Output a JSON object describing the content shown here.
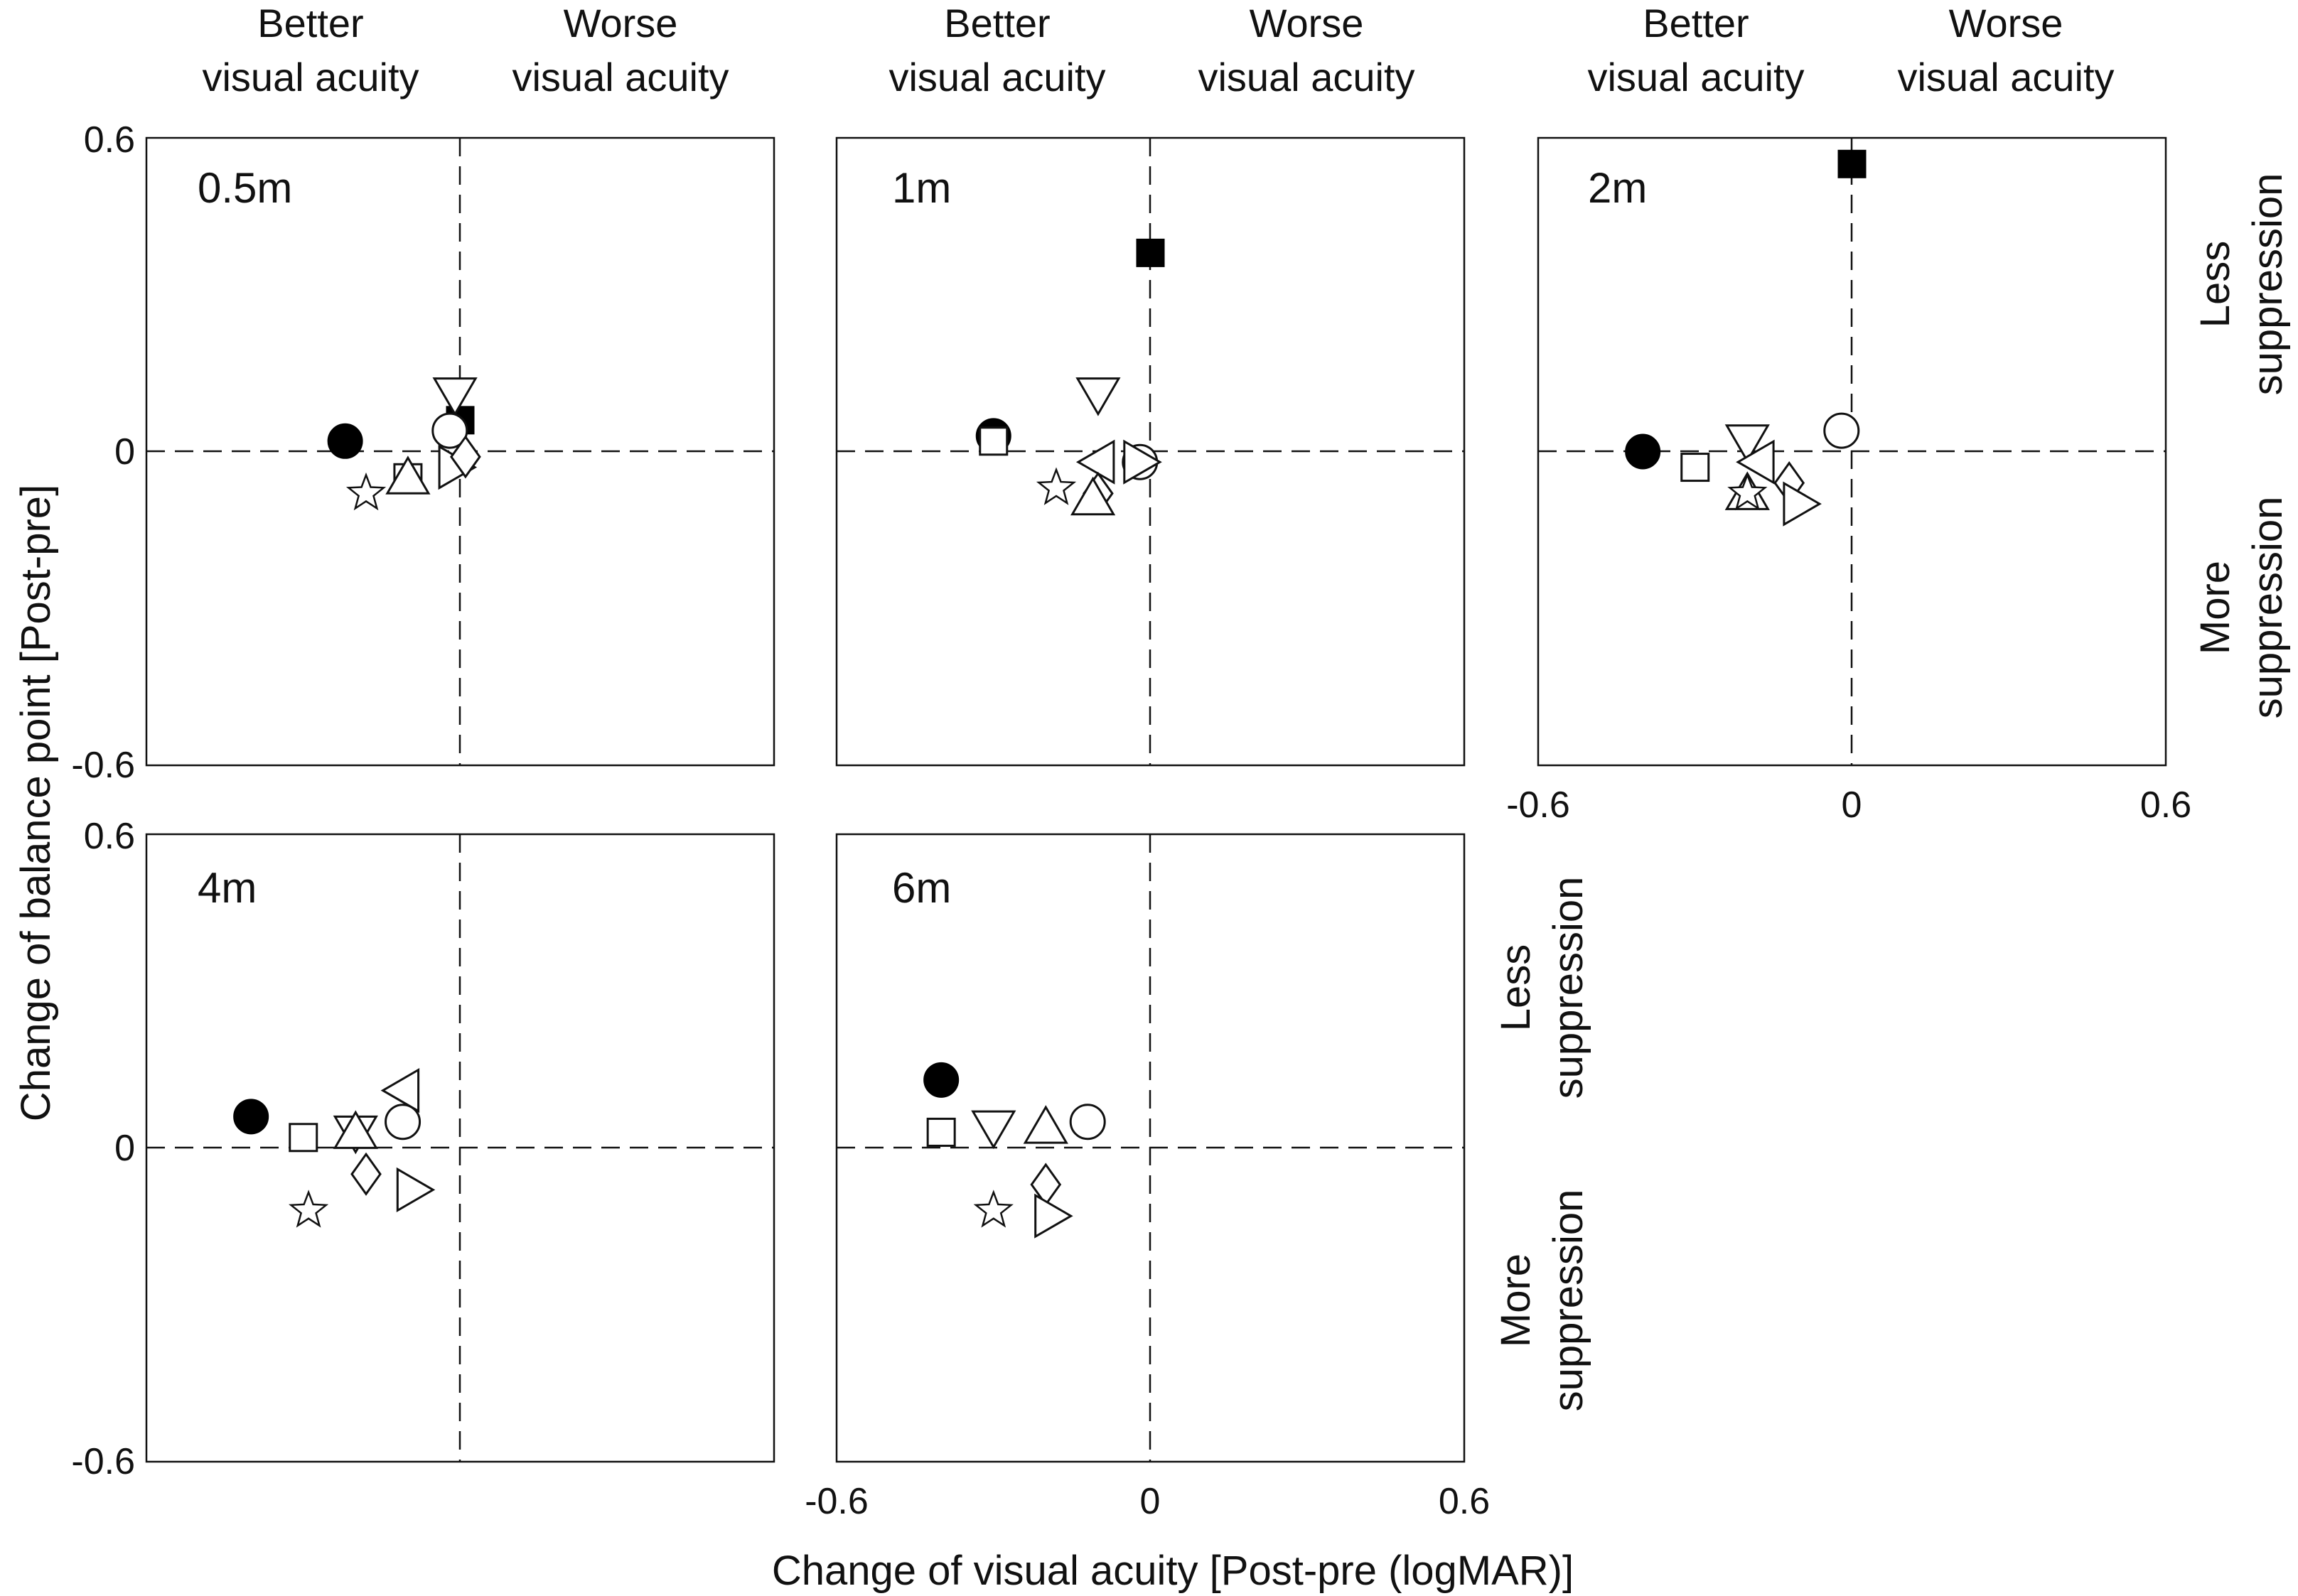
{
  "chart_data": {
    "type": "scatter",
    "x_axis_title": "Change of visual acuity [Post-pre (logMAR)]",
    "y_axis_title": "Change of balance point [Post-pre]",
    "xlim": [
      -0.6,
      0.6
    ],
    "ylim": [
      -0.6,
      0.6
    ],
    "x_ticks": [
      "-0.6",
      "0",
      "0.6"
    ],
    "y_ticks": [
      "0.6",
      "0",
      "-0.6"
    ],
    "column_headers": {
      "left_line1": "Better",
      "left_line2": "visual acuity",
      "right_line1": "Worse",
      "right_line2": "visual acuity"
    },
    "side_labels": {
      "less_line1": "Less",
      "less_line2": "suppression",
      "more_line1": "More",
      "more_line2": "suppression"
    },
    "panels": [
      {
        "label": "0.5m",
        "points": [
          {
            "marker": "filled-circle",
            "x": -0.22,
            "y": 0.02
          },
          {
            "marker": "filled-square",
            "x": 0.0,
            "y": 0.06
          },
          {
            "marker": "open-down-triangle",
            "x": -0.01,
            "y": 0.11
          },
          {
            "marker": "open-circle",
            "x": -0.02,
            "y": 0.04
          },
          {
            "marker": "open-square",
            "x": -0.1,
            "y": -0.05
          },
          {
            "marker": "open-up-triangle",
            "x": -0.1,
            "y": -0.05
          },
          {
            "marker": "open-star",
            "x": -0.18,
            "y": -0.08
          },
          {
            "marker": "open-right-triangle",
            "x": -0.01,
            "y": -0.03
          },
          {
            "marker": "open-diamond",
            "x": 0.01,
            "y": -0.01
          }
        ]
      },
      {
        "label": "1m",
        "points": [
          {
            "marker": "filled-circle",
            "x": -0.3,
            "y": 0.03
          },
          {
            "marker": "open-square",
            "x": -0.3,
            "y": 0.02
          },
          {
            "marker": "filled-square",
            "x": 0.0,
            "y": 0.38
          },
          {
            "marker": "open-down-triangle",
            "x": -0.1,
            "y": 0.11
          },
          {
            "marker": "open-left-triangle",
            "x": -0.1,
            "y": -0.02
          },
          {
            "marker": "open-circle",
            "x": -0.02,
            "y": -0.02
          },
          {
            "marker": "open-right-triangle",
            "x": -0.02,
            "y": -0.02
          },
          {
            "marker": "open-star",
            "x": -0.18,
            "y": -0.07
          },
          {
            "marker": "open-diamond",
            "x": -0.1,
            "y": -0.08
          },
          {
            "marker": "open-up-triangle",
            "x": -0.11,
            "y": -0.09
          }
        ]
      },
      {
        "label": "2m",
        "points": [
          {
            "marker": "filled-circle",
            "x": -0.4,
            "y": 0.0
          },
          {
            "marker": "filled-square",
            "x": 0.0,
            "y": 0.55
          },
          {
            "marker": "open-circle",
            "x": -0.02,
            "y": 0.04
          },
          {
            "marker": "open-square",
            "x": -0.3,
            "y": -0.03
          },
          {
            "marker": "open-down-triangle",
            "x": -0.2,
            "y": 0.02
          },
          {
            "marker": "open-left-triangle",
            "x": -0.18,
            "y": -0.02
          },
          {
            "marker": "open-diamond",
            "x": -0.12,
            "y": -0.06
          },
          {
            "marker": "open-right-triangle",
            "x": -0.1,
            "y": -0.1
          },
          {
            "marker": "open-up-triangle",
            "x": -0.2,
            "y": -0.08
          },
          {
            "marker": "open-star",
            "x": -0.2,
            "y": -0.08
          }
        ]
      },
      {
        "label": "4m",
        "points": [
          {
            "marker": "filled-circle",
            "x": -0.4,
            "y": 0.06
          },
          {
            "marker": "open-square",
            "x": -0.3,
            "y": 0.02
          },
          {
            "marker": "open-down-triangle",
            "x": -0.2,
            "y": 0.03
          },
          {
            "marker": "open-up-triangle",
            "x": -0.2,
            "y": 0.03
          },
          {
            "marker": "open-left-triangle",
            "x": -0.11,
            "y": 0.11
          },
          {
            "marker": "open-circle",
            "x": -0.11,
            "y": 0.05
          },
          {
            "marker": "open-diamond",
            "x": -0.18,
            "y": -0.05
          },
          {
            "marker": "open-right-triangle",
            "x": -0.09,
            "y": -0.08
          },
          {
            "marker": "open-star",
            "x": -0.29,
            "y": -0.12
          }
        ]
      },
      {
        "label": "6m",
        "points": [
          {
            "marker": "filled-circle",
            "x": -0.4,
            "y": 0.13
          },
          {
            "marker": "open-square",
            "x": -0.4,
            "y": 0.03
          },
          {
            "marker": "open-down-triangle",
            "x": -0.3,
            "y": 0.04
          },
          {
            "marker": "open-up-triangle",
            "x": -0.2,
            "y": 0.04
          },
          {
            "marker": "open-circle",
            "x": -0.12,
            "y": 0.05
          },
          {
            "marker": "open-diamond",
            "x": -0.2,
            "y": -0.07
          },
          {
            "marker": "open-right-triangle",
            "x": -0.19,
            "y": -0.13
          },
          {
            "marker": "open-star",
            "x": -0.3,
            "y": -0.12
          }
        ]
      }
    ]
  }
}
